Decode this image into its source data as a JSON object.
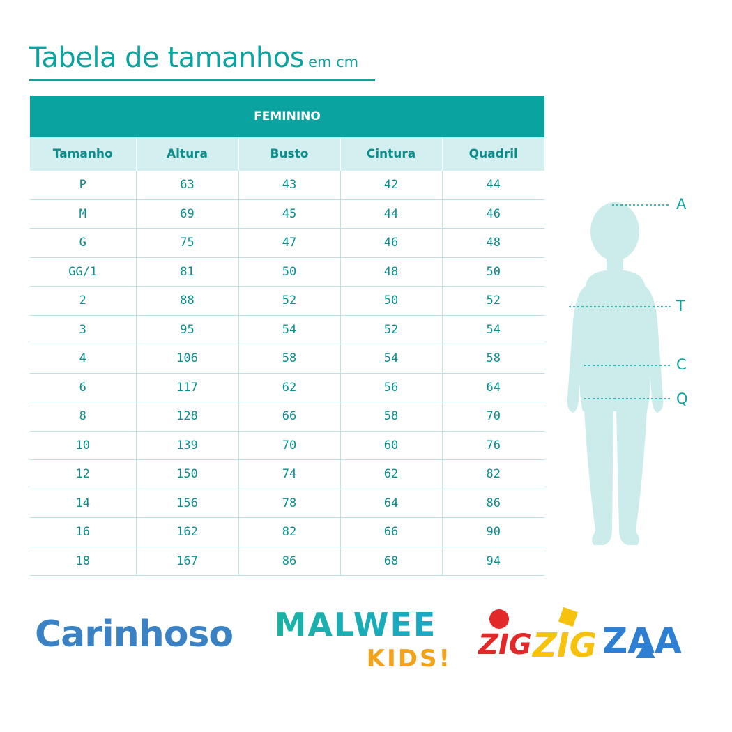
{
  "title": {
    "main": "Tabela de tamanhos",
    "unit": "em cm"
  },
  "table": {
    "section": "FEMININO",
    "columns": [
      "Tamanho",
      "Altura",
      "Busto",
      "Cintura",
      "Quadril"
    ],
    "rows": [
      [
        "P",
        "63",
        "43",
        "42",
        "44"
      ],
      [
        "M",
        "69",
        "45",
        "44",
        "46"
      ],
      [
        "G",
        "75",
        "47",
        "46",
        "48"
      ],
      [
        "GG/1",
        "81",
        "50",
        "48",
        "50"
      ],
      [
        "2",
        "88",
        "52",
        "50",
        "52"
      ],
      [
        "3",
        "95",
        "54",
        "52",
        "54"
      ],
      [
        "4",
        "106",
        "58",
        "54",
        "58"
      ],
      [
        "6",
        "117",
        "62",
        "56",
        "64"
      ],
      [
        "8",
        "128",
        "66",
        "58",
        "70"
      ],
      [
        "10",
        "139",
        "70",
        "60",
        "76"
      ],
      [
        "12",
        "150",
        "74",
        "62",
        "82"
      ],
      [
        "14",
        "156",
        "78",
        "64",
        "86"
      ],
      [
        "16",
        "162",
        "82",
        "66",
        "90"
      ],
      [
        "18",
        "167",
        "86",
        "68",
        "94"
      ]
    ]
  },
  "figure": {
    "markers": [
      "A",
      "T",
      "C",
      "Q"
    ],
    "color": "#ccecec",
    "line_color": "#0aa3a0"
  },
  "logos": {
    "carinhoso": "Carinhoso",
    "malwee": "MALWEE",
    "malwee_kids": "KIDS!",
    "zig1": "ZIG",
    "zig2": "ZIG",
    "zaa": "ZAA"
  },
  "colors": {
    "accent": "#0aa3a0",
    "header_bg": "#d4efef",
    "text": "#0b8f8d"
  }
}
